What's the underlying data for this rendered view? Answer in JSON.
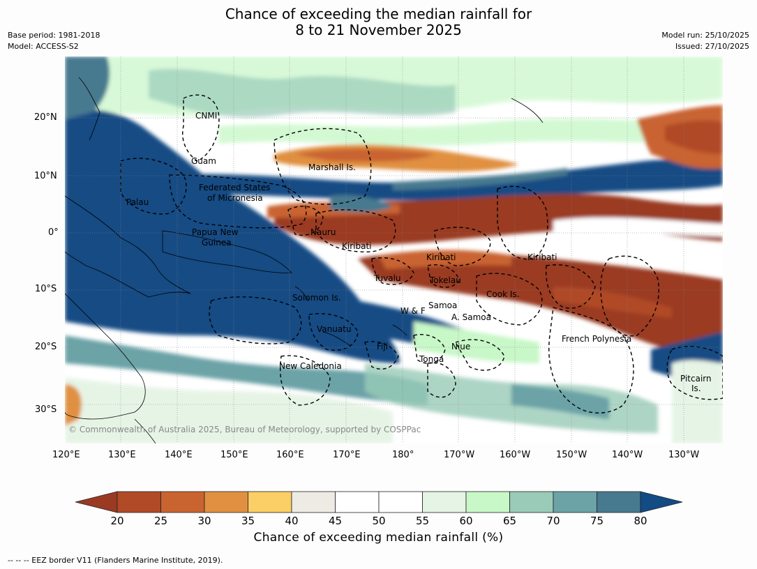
{
  "title_line1": "Chance of exceeding the median rainfall for",
  "title_line2": "8 to 21 November 2025",
  "base_period": "Base period: 1981-2018",
  "model": "Model: ACCESS-S2",
  "model_run": "Model run: 25/10/2025",
  "issued": "Issued: 27/10/2025",
  "copyright": "© Commonwealth of Australia 2025, Bureau of Meteorology, supported by COSPPac",
  "footer": "--  --  -- EEZ border V11 (Flanders Marine Institute, 2019).",
  "colorbar_label": "Chance of exceeding median rainfall (%)",
  "lon_ticks": [
    "120°E",
    "130°E",
    "140°E",
    "150°E",
    "160°E",
    "170°E",
    "180°",
    "170°W",
    "160°W",
    "150°W",
    "140°W",
    "130°W"
  ],
  "lat_ticks": [
    "20°N",
    "10°N",
    "0°",
    "10°S",
    "20°S",
    "30°S"
  ],
  "regions": [
    "CNMI",
    "Guam",
    "Marshall Is.",
    "Federated States",
    "of Micronesia",
    "Palau",
    "Nauru",
    "Papua New",
    "Guinea",
    "Kiribati",
    "Kiribati",
    "Kiribati",
    "Tuvalu",
    "Tokelau",
    "Solomon Is.",
    "Cook Is.",
    "Samoa",
    "W & F",
    "A. Samoa",
    "Vanuatu",
    "French Polynesia",
    "Fiji",
    "Niue",
    "Tonga",
    "New Caledonia",
    "Pitcairn",
    "Is."
  ],
  "colorbar_ticks": [
    "20",
    "25",
    "30",
    "35",
    "40",
    "45",
    "50",
    "55",
    "60",
    "65",
    "70",
    "75",
    "80"
  ],
  "colorbar_colors": [
    "#9a3a23",
    "#b04a27",
    "#c96430",
    "#e09040",
    "#fbce66",
    "#eeebe5",
    "#ffffff",
    "#ffffff",
    "#e6f4e6",
    "#c8f7c8",
    "#99cbb8",
    "#6ca3a7",
    "#47798f",
    "#134b84"
  ]
}
